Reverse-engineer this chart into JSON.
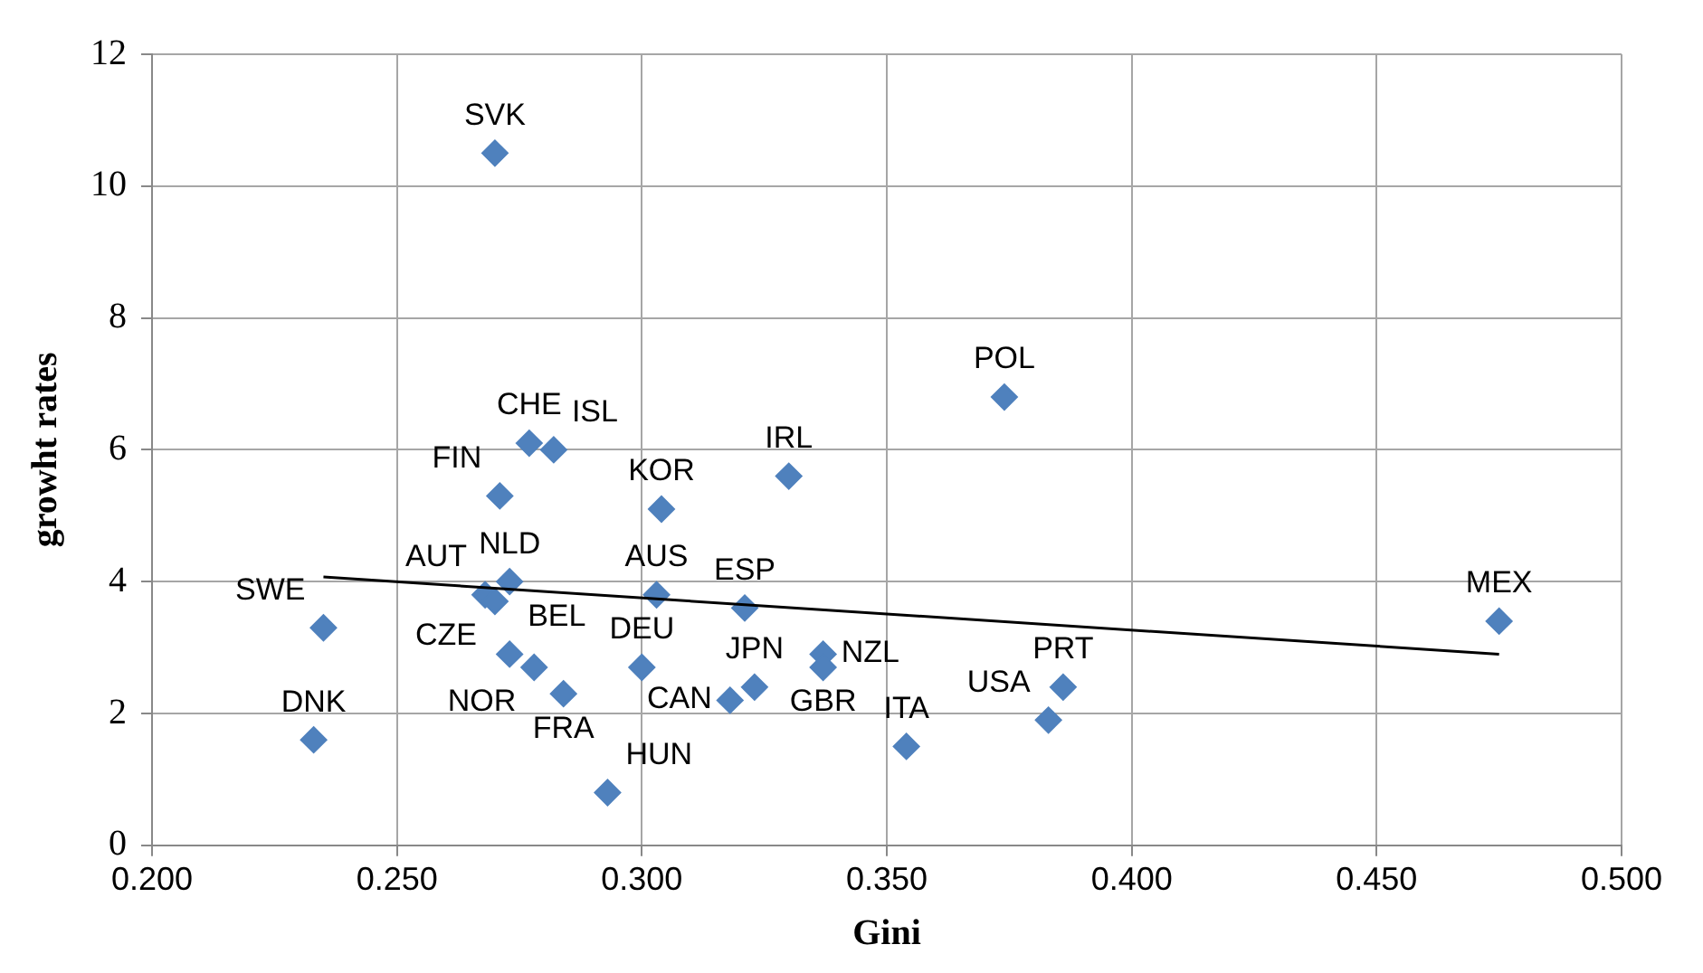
{
  "chart_data": {
    "type": "scatter",
    "xlabel": "Gini",
    "ylabel": "growht rates",
    "xlim": [
      0.2,
      0.5
    ],
    "xticks": [
      {
        "value": 0.2,
        "label": "0.200"
      },
      {
        "value": 0.25,
        "label": "0.250"
      },
      {
        "value": 0.3,
        "label": "0.300"
      },
      {
        "value": 0.35,
        "label": "0.350"
      },
      {
        "value": 0.4,
        "label": "0.400"
      },
      {
        "value": 0.45,
        "label": "0.450"
      },
      {
        "value": 0.5,
        "label": "0.500"
      }
    ],
    "ylim": [
      0,
      12
    ],
    "yticks": [
      0,
      2,
      4,
      6,
      8,
      10,
      12
    ],
    "grid": true,
    "legend": false,
    "series": [
      {
        "type": "scatter",
        "color": "#4f81bd",
        "marker": "diamond",
        "x": [
          0.27,
          0.374,
          0.475,
          0.33,
          0.304,
          0.277,
          0.282,
          0.271,
          0.273,
          0.268,
          0.27,
          0.235,
          0.233,
          0.273,
          0.278,
          0.284,
          0.293,
          0.3,
          0.303,
          0.321,
          0.337,
          0.337,
          0.323,
          0.318,
          0.354,
          0.386,
          0.383
        ],
        "values": [
          10.5,
          6.8,
          3.4,
          5.6,
          5.1,
          6.1,
          6.0,
          5.3,
          4.0,
          3.8,
          3.7,
          3.3,
          1.6,
          2.9,
          2.7,
          2.3,
          0.8,
          2.7,
          3.8,
          3.6,
          2.9,
          2.7,
          2.4,
          2.2,
          1.5,
          2.4,
          1.9
        ]
      },
      {
        "type": "line",
        "color": "#000000",
        "marker": "none",
        "x": [
          0.235,
          0.475
        ],
        "values": [
          4.07,
          2.9
        ]
      }
    ],
    "annotations": [
      {
        "text": "SVK",
        "x": 0.27,
        "y": 10.5
      },
      {
        "text": "POL",
        "x": 0.374,
        "y": 6.8
      },
      {
        "text": "MEX",
        "x": 0.475,
        "y": 3.4
      },
      {
        "text": "IRL",
        "x": 0.33,
        "y": 5.6
      },
      {
        "text": "KOR",
        "x": 0.304,
        "y": 5.1
      },
      {
        "text": "CHE",
        "x": 0.277,
        "y": 6.1
      },
      {
        "text": "ISL",
        "x": 0.282,
        "y": 6.0
      },
      {
        "text": "FIN",
        "x": 0.271,
        "y": 5.3
      },
      {
        "text": "NLD",
        "x": 0.273,
        "y": 4.0
      },
      {
        "text": "AUT",
        "x": 0.268,
        "y": 3.8
      },
      {
        "text": "CZE",
        "x": 0.27,
        "y": 3.7
      },
      {
        "text": "SWE",
        "x": 0.235,
        "y": 3.3
      },
      {
        "text": "DNK",
        "x": 0.233,
        "y": 1.6
      },
      {
        "text": "BEL",
        "x": 0.273,
        "y": 2.9
      },
      {
        "text": "NOR",
        "x": 0.278,
        "y": 2.7
      },
      {
        "text": "FRA",
        "x": 0.284,
        "y": 2.3
      },
      {
        "text": "HUN",
        "x": 0.293,
        "y": 0.8
      },
      {
        "text": "DEU",
        "x": 0.3,
        "y": 2.7
      },
      {
        "text": "AUS",
        "x": 0.303,
        "y": 3.8
      },
      {
        "text": "ESP",
        "x": 0.321,
        "y": 3.6
      },
      {
        "text": "NZL",
        "x": 0.337,
        "y": 2.9
      },
      {
        "text": "GBR",
        "x": 0.337,
        "y": 2.7
      },
      {
        "text": "JPN",
        "x": 0.323,
        "y": 2.4
      },
      {
        "text": "CAN",
        "x": 0.318,
        "y": 2.2
      },
      {
        "text": "ITA",
        "x": 0.354,
        "y": 1.5
      },
      {
        "text": "PRT",
        "x": 0.386,
        "y": 2.4
      },
      {
        "text": "USA",
        "x": 0.383,
        "y": 1.9
      }
    ]
  }
}
